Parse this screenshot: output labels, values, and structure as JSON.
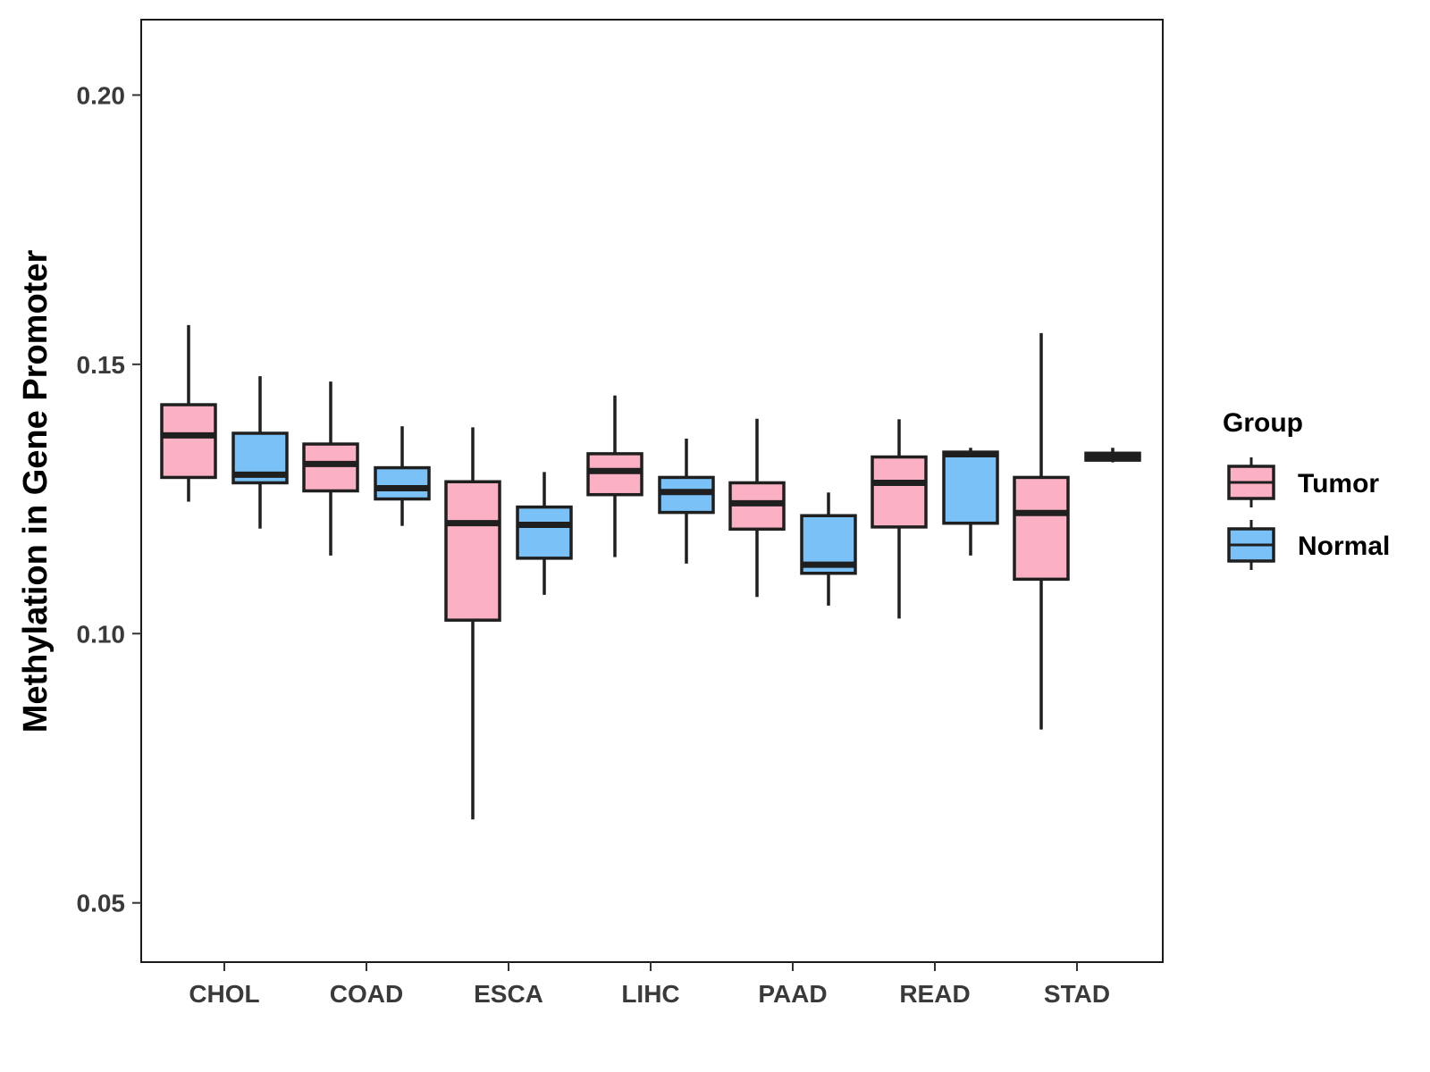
{
  "chart_data": {
    "type": "box",
    "title": "",
    "xlabel": "",
    "ylabel": "Methylation in Gene Promoter",
    "ylim": [
      0.039,
      0.214
    ],
    "yticks": [
      0.05,
      0.1,
      0.15,
      0.2
    ],
    "ytick_labels": [
      "0.05",
      "0.10",
      "0.15",
      "0.20"
    ],
    "categories": [
      "CHOL",
      "COAD",
      "ESCA",
      "LIHC",
      "PAAD",
      "READ",
      "STAD"
    ],
    "grid": false,
    "legend": {
      "title": "Group",
      "position": "right",
      "entries": [
        {
          "name": "Tumor",
          "color": "#fbb1c3"
        },
        {
          "name": "Normal",
          "color": "#79c1f7"
        }
      ]
    },
    "series": [
      {
        "name": "Tumor",
        "color": "#fbb1c3",
        "boxes": [
          {
            "category": "CHOL",
            "min": 0.1245,
            "q1": 0.129,
            "median": 0.1368,
            "q3": 0.1425,
            "max": 0.1573
          },
          {
            "category": "COAD",
            "min": 0.1145,
            "q1": 0.1265,
            "median": 0.1315,
            "q3": 0.1352,
            "max": 0.1468
          },
          {
            "category": "ESCA",
            "min": 0.0655,
            "q1": 0.1025,
            "median": 0.1205,
            "q3": 0.1282,
            "max": 0.1383
          },
          {
            "category": "LIHC",
            "min": 0.1142,
            "q1": 0.1258,
            "median": 0.1302,
            "q3": 0.1334,
            "max": 0.1442
          },
          {
            "category": "PAAD",
            "min": 0.1068,
            "q1": 0.1194,
            "median": 0.1242,
            "q3": 0.128,
            "max": 0.1399
          },
          {
            "category": "READ",
            "min": 0.1028,
            "q1": 0.1198,
            "median": 0.128,
            "q3": 0.1328,
            "max": 0.1398
          },
          {
            "category": "STAD",
            "min": 0.0822,
            "q1": 0.1101,
            "median": 0.1224,
            "q3": 0.129,
            "max": 0.1558
          }
        ]
      },
      {
        "name": "Normal",
        "color": "#79c1f7",
        "boxes": [
          {
            "category": "CHOL",
            "min": 0.1195,
            "q1": 0.128,
            "median": 0.1295,
            "q3": 0.1372,
            "max": 0.1478
          },
          {
            "category": "COAD",
            "min": 0.12,
            "q1": 0.125,
            "median": 0.127,
            "q3": 0.1308,
            "max": 0.1385
          },
          {
            "category": "ESCA",
            "min": 0.1072,
            "q1": 0.114,
            "median": 0.1202,
            "q3": 0.1235,
            "max": 0.13
          },
          {
            "category": "LIHC",
            "min": 0.113,
            "q1": 0.1225,
            "median": 0.1263,
            "q3": 0.129,
            "max": 0.1362
          },
          {
            "category": "PAAD",
            "min": 0.1052,
            "q1": 0.1112,
            "median": 0.1128,
            "q3": 0.1219,
            "max": 0.1262
          },
          {
            "category": "READ",
            "min": 0.1145,
            "q1": 0.1205,
            "median": 0.1333,
            "q3": 0.1337,
            "max": 0.1345
          },
          {
            "category": "STAD",
            "min": 0.1318,
            "q1": 0.1322,
            "median": 0.133,
            "q3": 0.1335,
            "max": 0.1345
          }
        ]
      }
    ]
  }
}
